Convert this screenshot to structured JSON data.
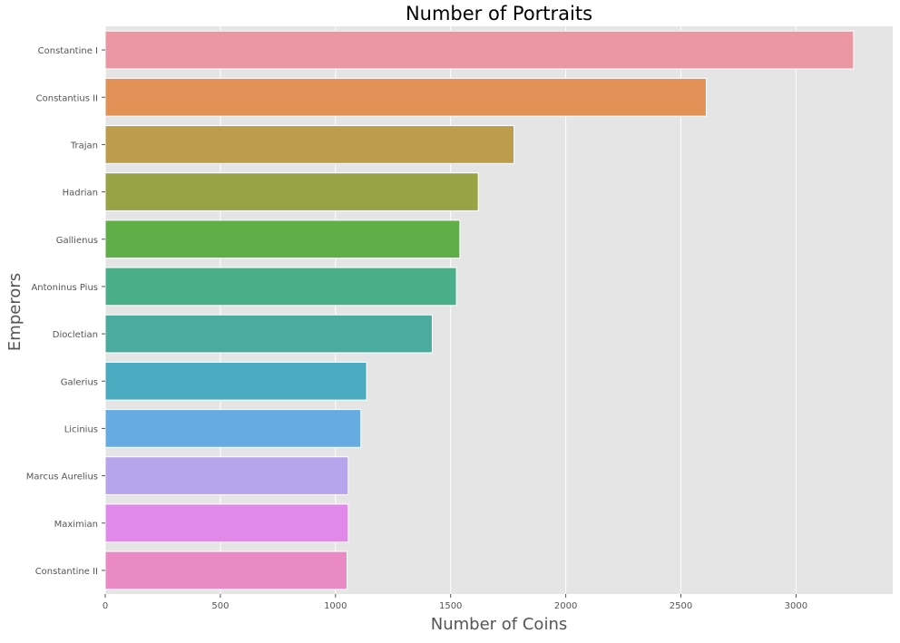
{
  "chart_data": {
    "type": "bar",
    "orientation": "horizontal",
    "title": "Number of Portraits",
    "xlabel": "Number of Coins",
    "ylabel": "Emperors",
    "xlim": [
      0,
      3420
    ],
    "xticks": [
      0,
      500,
      1000,
      1500,
      2000,
      2500,
      3000
    ],
    "grid": true,
    "categories": [
      "Constantine I",
      "Constantius II",
      "Trajan",
      "Hadrian",
      "Gallienus",
      "Antoninus Pius",
      "Diocletian",
      "Galerius",
      "Licinius",
      "Marcus Aurelius",
      "Maximian",
      "Constantine II"
    ],
    "values": [
      3250,
      2610,
      1775,
      1620,
      1540,
      1525,
      1420,
      1135,
      1110,
      1055,
      1055,
      1050
    ],
    "colors": [
      "#ea96a3",
      "#e29156",
      "#bb9d4c",
      "#98a346",
      "#5fae47",
      "#4aae8a",
      "#4bab9e",
      "#4aabc0",
      "#67abe3",
      "#b6a5ec",
      "#e089ea",
      "#e98ac4"
    ],
    "plot_background": "#e5e5e5",
    "grid_color": "#ffffff"
  }
}
